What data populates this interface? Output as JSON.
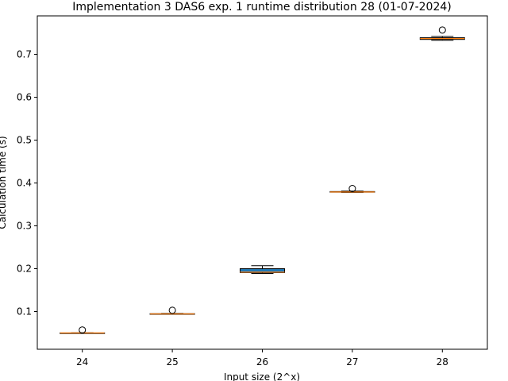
{
  "chart_data": {
    "type": "box",
    "title": "Implementation 3 DAS6 exp. 1 runtime distribution 28 (01-07-2024)",
    "xlabel": "Input size (2^x)",
    "ylabel": "Calculation time (s)",
    "categories": [
      "24",
      "25",
      "26",
      "27",
      "28"
    ],
    "ylim": [
      0.012,
      0.79
    ],
    "yticks": [
      0.1,
      0.2,
      0.3,
      0.4,
      0.5,
      0.6,
      0.7
    ],
    "ytick_labels": [
      "0.1",
      "0.2",
      "0.3",
      "0.4",
      "0.5",
      "0.6",
      "0.7"
    ],
    "grid": false,
    "boxes": [
      {
        "category": "24",
        "whisker_low": 0.0495,
        "q1": 0.0498,
        "median": 0.05,
        "q3": 0.0502,
        "whisker_high": 0.0505,
        "outliers": [
          0.057
        ]
      },
      {
        "category": "25",
        "whisker_low": 0.0935,
        "q1": 0.094,
        "median": 0.0945,
        "q3": 0.095,
        "whisker_high": 0.0955,
        "outliers": [
          0.103
        ]
      },
      {
        "category": "26",
        "whisker_low": 0.189,
        "q1": 0.191,
        "median": 0.192,
        "q3": 0.2,
        "whisker_high": 0.207,
        "outliers": []
      },
      {
        "category": "27",
        "whisker_low": 0.378,
        "q1": 0.3785,
        "median": 0.379,
        "q3": 0.38,
        "whisker_high": 0.381,
        "outliers": [
          0.387
        ]
      },
      {
        "category": "28",
        "whisker_low": 0.733,
        "q1": 0.735,
        "median": 0.737,
        "q3": 0.739,
        "whisker_high": 0.742,
        "outliers": [
          0.757
        ]
      }
    ],
    "colors": {
      "box_fill": "#1f77b4",
      "median": "#ff7f0e",
      "edge": "#000000"
    }
  }
}
